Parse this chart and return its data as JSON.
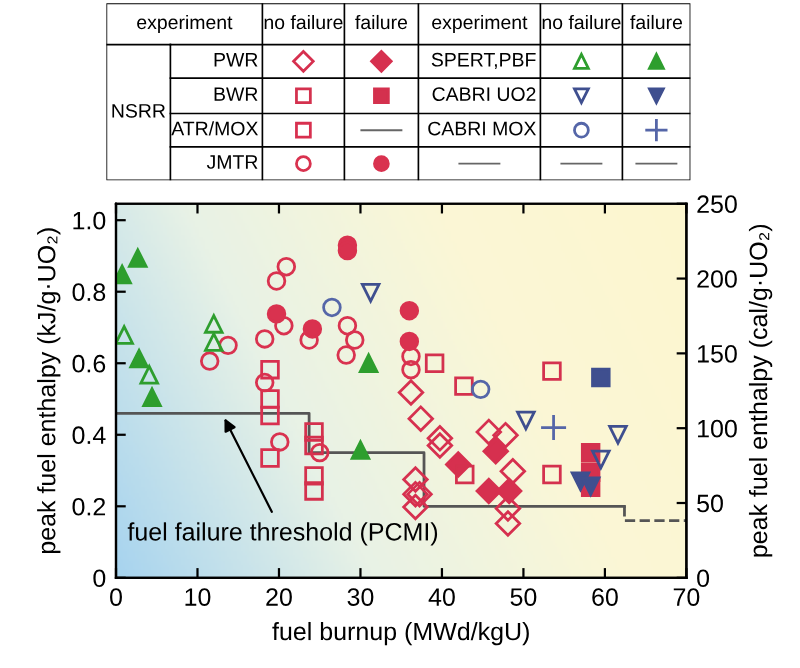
{
  "chart_data": {
    "type": "scatter",
    "xlabel": "fuel burnup (MWd/kgU)",
    "ylabel": "peak fuel enthalpy (kJ/g·UO₂)",
    "y2label": "peak fuel enthalpy (cal/g·UO₂)",
    "xlim": [
      0,
      70
    ],
    "xticks": [
      0,
      10,
      20,
      30,
      40,
      50,
      60,
      70
    ],
    "ylim": [
      0,
      1.046
    ],
    "yticks": [
      0,
      0.2,
      0.4,
      0.6,
      0.8,
      {
        "value": 1.0,
        "label": "1.0"
      }
    ],
    "y2lim": [
      0,
      250
    ],
    "y2ticks": [
      0,
      50,
      100,
      150,
      200,
      250
    ],
    "grid": false,
    "legend": "top",
    "annotations": [
      "experiment",
      "no failure",
      "failure",
      "NSRR",
      {
        "text": "fuel failure threshold (PCMI)",
        "x": 13,
        "y": 0.46
      }
    ],
    "series": [
      {
        "name": "PWR",
        "color": "#d6304f",
        "marker": "diamond",
        "x": [
          36.2,
          37.4,
          39.75,
          39.75,
          36.75,
          36.75,
          36.75,
          37.25,
          45.75,
          47.8,
          48.7,
          48.1,
          48.1
        ],
        "values": [
          0.518,
          0.445,
          0.37,
          0.39,
          0.275,
          0.234,
          0.198,
          0.234,
          0.408,
          0.399,
          0.298,
          0.194,
          0.152
        ]
      },
      {
        "color": "#d6304f",
        "marker": "diamond",
        "x": [
          42,
          46.6,
          45.75,
          48.25
        ],
        "values": [
          0.317,
          0.354,
          0.243,
          0.243
        ]
      },
      {
        "name": "BWR",
        "color": "#d4314e",
        "marker": "square",
        "x": [
          24.3,
          24.3,
          24.3,
          24.3,
          39.1,
          42.7,
          53.5,
          42.8,
          53.5
        ],
        "values": [
          0.408,
          0.37,
          0.285,
          0.243,
          0.6,
          0.536,
          0.578,
          0.289,
          0.289
        ]
      },
      {
        "color": "#d4314e",
        "marker": "square",
        "x": [
          58.25,
          58.25,
          58.25
        ],
        "values": [
          0.35,
          0.295,
          0.253
        ]
      },
      {
        "name": "ATR/MOX",
        "color": "#d8304f",
        "marker": "square",
        "x": [
          18.9,
          18.9,
          18.9,
          18.9
        ],
        "values": [
          0.582,
          0.5,
          0.454,
          0.335
        ]
      },
      {
        "name": "JMTR",
        "color": "#d9324f",
        "marker": "circle",
        "x": [
          11.5,
          13.75,
          18.25,
          19.7,
          20.9,
          20.6,
          18.25,
          20.1,
          25.0,
          23.7,
          28.4,
          29.3,
          28.25,
          36.2,
          36.2
        ],
        "values": [
          0.606,
          0.65,
          0.668,
          0.83,
          0.87,
          0.705,
          0.546,
          0.38,
          0.35,
          0.665,
          0.705,
          0.665,
          0.623,
          0.619,
          0.582
        ]
      },
      {
        "color": "#d9324f",
        "marker": "circle",
        "x": [
          19.7,
          24.1,
          28.4,
          28.4,
          36,
          36
        ],
        "values": [
          0.738,
          0.696,
          0.93,
          0.915,
          0.747,
          0.661
        ]
      },
      {
        "name": "SPERT,PBF",
        "color": "#2e9e2e",
        "marker": "triangle",
        "x": [
          1.0,
          4.08,
          12.0,
          12.0
        ],
        "values": [
          0.679,
          0.568,
          0.71,
          0.659
        ]
      },
      {
        "color": "#2e9e2e",
        "marker": "triangle",
        "x": [
          0.75,
          2.67,
          2.83,
          4.42,
          31.0,
          30.0
        ],
        "values": [
          0.848,
          0.894,
          0.613,
          0.505,
          0.6,
          0.357
        ]
      },
      {
        "name": "CABRI UO2",
        "color": "#3f4f8f",
        "marker": "triangle_down",
        "x": [
          31.25,
          50.3,
          61.6,
          59.5
        ],
        "values": [
          0.797,
          0.44,
          0.4,
          0.331
        ]
      },
      {
        "color": "#3f4f8f",
        "marker": "triangle_down",
        "x": [
          57,
          58.25
        ],
        "values": [
          0.27,
          0.256
        ]
      },
      {
        "name": "CABRI MOX",
        "color": "#5566a8",
        "marker": "circle",
        "x": [
          26.5,
          44.75
        ],
        "values": [
          0.756,
          0.527
        ]
      },
      {
        "color": "#5566a8",
        "marker": "cross",
        "x": [
          53.7
        ],
        "values": [
          0.42
        ]
      },
      {
        "color": "#3f4f8f",
        "marker": "square",
        "x": [
          59.5
        ],
        "values": [
          0.56
        ]
      },
      {
        "type": "step",
        "color": "#555555",
        "line_style": "solid",
        "x": [
          0,
          23.7,
          37.8,
          62.4
        ],
        "values": [
          0.46,
          0.35,
          0.2,
          0.2
        ]
      },
      {
        "type": "line",
        "color": "#555555",
        "line_style": "dashed",
        "x": [
          62.4,
          62.4,
          70
        ],
        "values": [
          0.2,
          0.16,
          0.16
        ]
      }
    ]
  }
}
